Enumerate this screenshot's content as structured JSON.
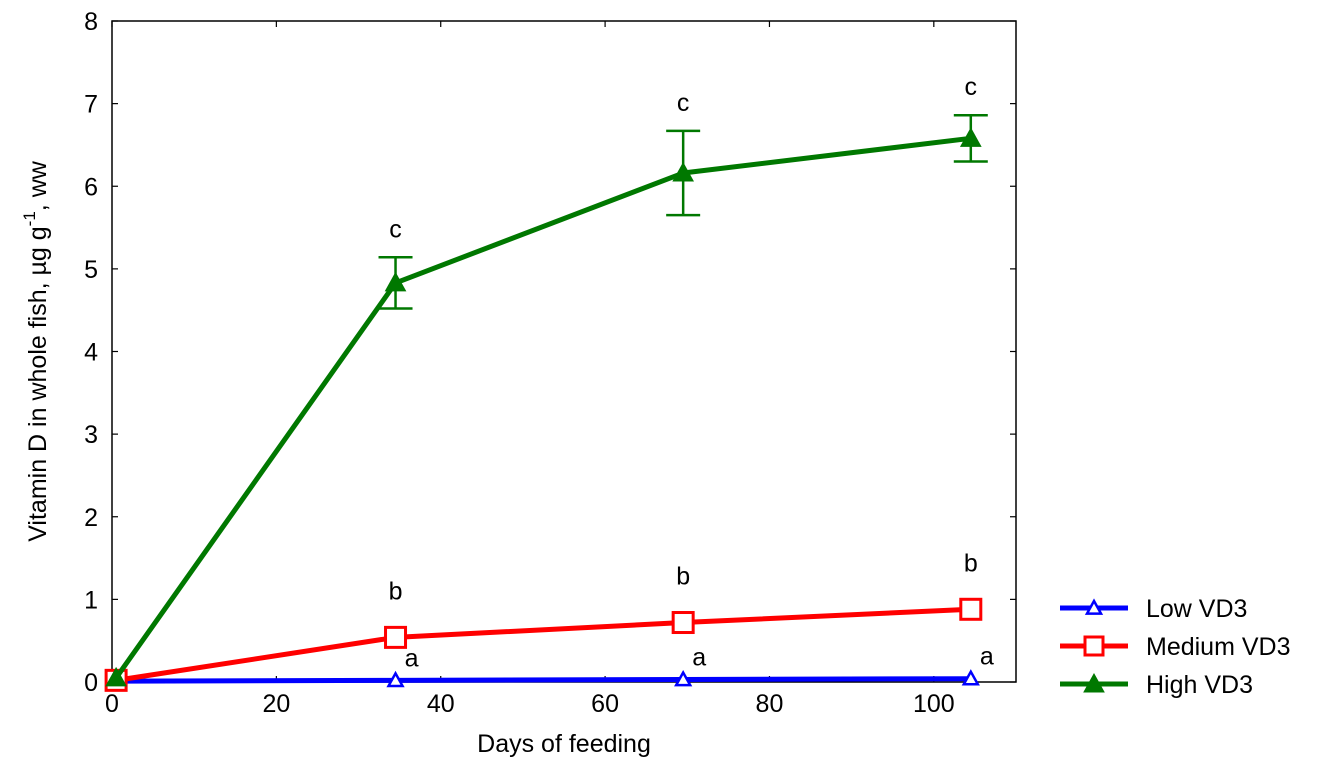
{
  "chart_data": {
    "type": "line",
    "xlabel": "Days of feeding",
    "ylabel_main": "Vitamin D in whole fish, µg g",
    "ylabel_sup": "-1",
    "ylabel_tail": ", ww",
    "xlim": [
      0,
      110
    ],
    "ylim": [
      0,
      8
    ],
    "xticks": [
      0,
      20,
      40,
      60,
      80,
      100
    ],
    "yticks": [
      0,
      1,
      2,
      3,
      4,
      5,
      6,
      7,
      8
    ],
    "grid": false,
    "legend_position": "right",
    "x": [
      0.5,
      34.5,
      69.5,
      104.5
    ],
    "series": [
      {
        "name": "Low VD3",
        "color": "#0000ff",
        "marker": "open-triangle",
        "values": [
          0.01,
          0.02,
          0.03,
          0.04
        ],
        "errors": [
          0.0,
          0.0,
          0.0,
          0.0
        ],
        "letters": [
          "",
          "a",
          "a",
          "a"
        ]
      },
      {
        "name": "Medium VD3",
        "color": "#ff0000",
        "marker": "open-square",
        "values": [
          0.02,
          0.54,
          0.72,
          0.88
        ],
        "errors": [
          0.0,
          0.03,
          0.03,
          0.03
        ],
        "letters": [
          "",
          "b",
          "b",
          "b"
        ]
      },
      {
        "name": "High VD3",
        "color": "#007800",
        "marker": "filled-triangle",
        "values": [
          0.05,
          4.83,
          6.16,
          6.58
        ],
        "errors": [
          0.0,
          0.31,
          0.51,
          0.28
        ],
        "letters": [
          "",
          "c",
          "c",
          "c"
        ]
      }
    ]
  }
}
